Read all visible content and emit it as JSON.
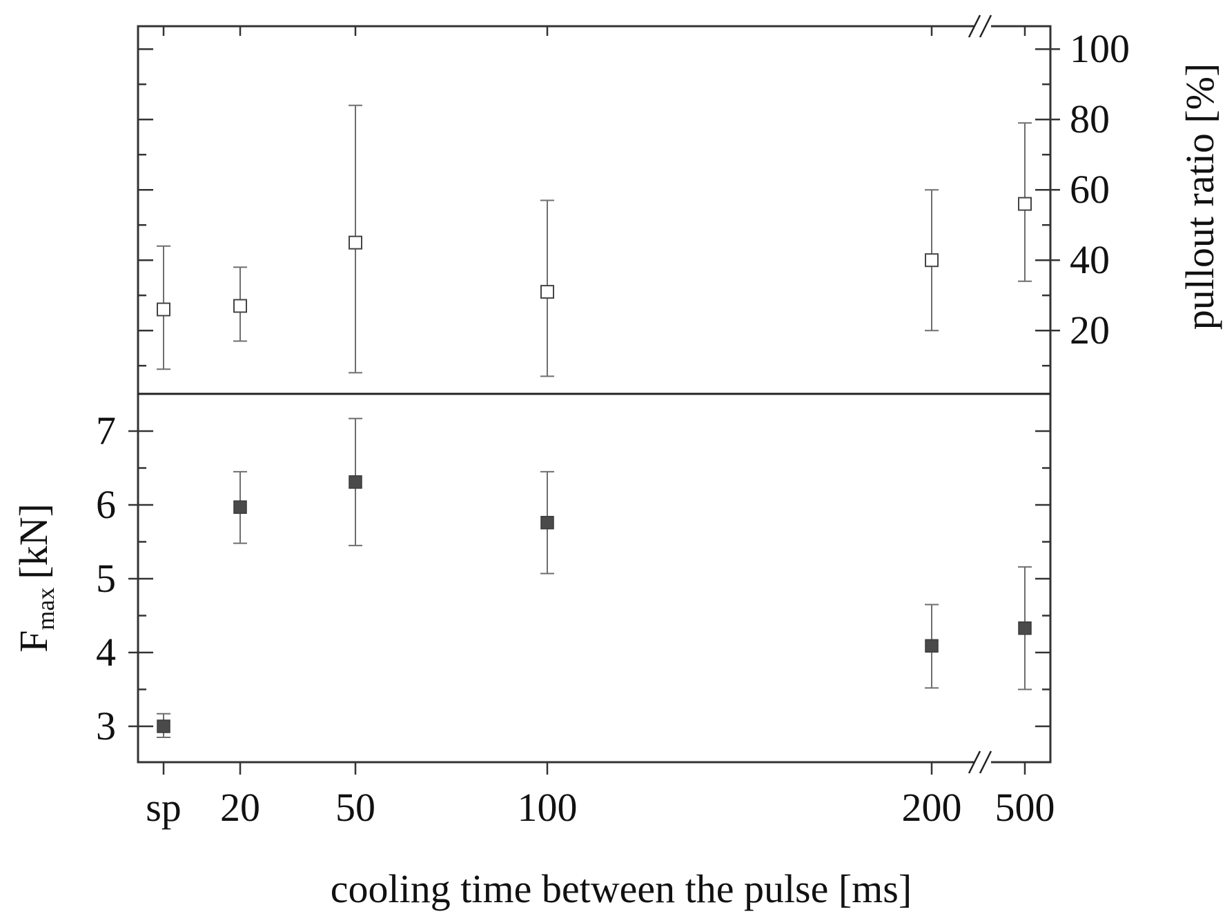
{
  "chart_data": [
    {
      "type": "scatter",
      "panel": "top",
      "x_categories": [
        "sp",
        "20",
        "50",
        "100",
        "200",
        "500"
      ],
      "x_axis_label": "cooling time between the pulse [ms]",
      "axis_break": "between 200 and 500",
      "y_axis_side": "right",
      "ylabel": "pullout ratio [%]",
      "ylim": [
        2,
        102
      ],
      "yticks": [
        20,
        40,
        60,
        80,
        100
      ],
      "series": [
        {
          "marker": "open-square",
          "points": [
            {
              "x": "sp",
              "y": 26,
              "err_low": 9,
              "err_high": 44
            },
            {
              "x": "20",
              "y": 27,
              "err_low": 17,
              "err_high": 38
            },
            {
              "x": "50",
              "y": 45,
              "err_low": 8,
              "err_high": 84
            },
            {
              "x": "100",
              "y": 31,
              "err_low": 7,
              "err_high": 57
            },
            {
              "x": "200",
              "y": 40,
              "err_low": 20,
              "err_high": 60
            },
            {
              "x": "500",
              "y": 56,
              "err_low": 34,
              "err_high": 79
            }
          ]
        }
      ],
      "grid": false,
      "colors": {
        "marker_fill": "#ffffff",
        "marker_stroke": "#444444",
        "error_bar": "#6e6e6e"
      }
    },
    {
      "type": "scatter",
      "panel": "bottom",
      "x_categories": [
        "sp",
        "20",
        "50",
        "100",
        "200",
        "500"
      ],
      "x_axis_label": "cooling time between the pulse [ms]",
      "axis_break": "between 200 and 500",
      "y_axis_side": "left",
      "ylabel_main": "F",
      "ylabel_sub": "max",
      "ylabel_unit": "[kN]",
      "ylim": [
        2.5,
        7.5
      ],
      "yticks": [
        3,
        4,
        5,
        6,
        7
      ],
      "series": [
        {
          "marker": "filled-square",
          "points": [
            {
              "x": "sp",
              "y": 3.0,
              "err_low": 2.85,
              "err_high": 3.17
            },
            {
              "x": "20",
              "y": 5.97,
              "err_low": 5.48,
              "err_high": 6.45
            },
            {
              "x": "50",
              "y": 6.31,
              "err_low": 5.45,
              "err_high": 7.17
            },
            {
              "x": "100",
              "y": 5.76,
              "err_low": 5.07,
              "err_high": 6.45
            },
            {
              "x": "200",
              "y": 4.09,
              "err_low": 3.52,
              "err_high": 4.65
            },
            {
              "x": "500",
              "y": 4.33,
              "err_low": 3.5,
              "err_high": 5.16
            }
          ]
        }
      ],
      "grid": false,
      "colors": {
        "marker_fill": "#4a4a4a",
        "marker_stroke": "#3a3a3a",
        "error_bar": "#6e6e6e"
      }
    }
  ]
}
